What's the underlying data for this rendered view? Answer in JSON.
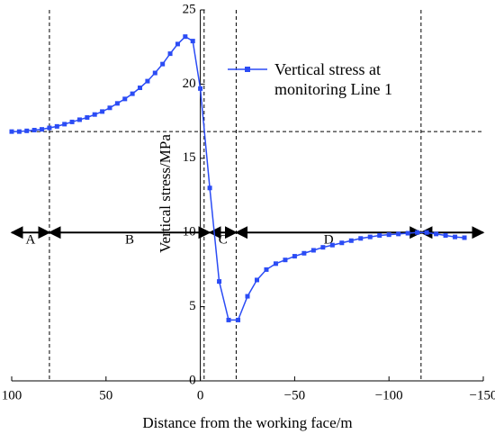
{
  "chart_data": {
    "type": "line",
    "x_label": "Distance from the working face/m",
    "y_label": "Vertical stress/MPa",
    "xlim": [
      100,
      -150
    ],
    "xticks": [
      100,
      50,
      0,
      {
        "value": -50,
        "label": "−50"
      },
      {
        "value": -100,
        "label": "−100"
      },
      {
        "value": -150,
        "label": "−150"
      }
    ],
    "ylim": [
      0,
      25
    ],
    "yticks": [
      0,
      5,
      10,
      15,
      20,
      25
    ],
    "x": [
      100,
      96,
      92,
      88,
      84,
      80,
      76,
      72,
      68,
      64,
      60,
      56,
      52,
      48,
      44,
      40,
      36,
      32,
      28,
      24,
      20,
      16,
      12,
      8,
      4,
      0,
      -5,
      -10,
      -15,
      -20,
      -25,
      -30,
      -35,
      -40,
      -45,
      -50,
      -55,
      -60,
      -65,
      -70,
      -75,
      -80,
      -85,
      -90,
      -95,
      -100,
      -105,
      -110,
      -115,
      -120,
      -125,
      -130,
      -135,
      -140
    ],
    "series": [
      {
        "name": "Vertical stress at monitoring Line 1",
        "color": "#2b4cf5",
        "values": [
          16.8,
          16.8,
          16.85,
          16.9,
          16.95,
          17.05,
          17.15,
          17.3,
          17.45,
          17.6,
          17.75,
          17.95,
          18.15,
          18.4,
          18.7,
          19.0,
          19.35,
          19.75,
          20.2,
          20.75,
          21.35,
          22.05,
          22.7,
          23.2,
          22.9,
          19.7,
          13.0,
          6.7,
          4.1,
          4.1,
          5.7,
          6.8,
          7.5,
          7.9,
          8.15,
          8.4,
          8.6,
          8.8,
          9.0,
          9.15,
          9.3,
          9.45,
          9.6,
          9.7,
          9.8,
          9.85,
          9.9,
          9.95,
          10.0,
          10.0,
          9.9,
          9.8,
          9.7,
          9.65
        ]
      }
    ],
    "reference_x": [
      80,
      -2,
      -19,
      -117
    ],
    "reference_y": 16.8,
    "region_arrow_y": 10,
    "regions": [
      {
        "label": "A",
        "from": 100,
        "to": 80
      },
      {
        "label": "B",
        "from": 80,
        "to": -5
      },
      {
        "label": "C",
        "from": -5,
        "to": -19
      },
      {
        "label": "D",
        "from": -19,
        "to": -117
      },
      {
        "label": null,
        "from": -117,
        "to": -150
      }
    ]
  }
}
